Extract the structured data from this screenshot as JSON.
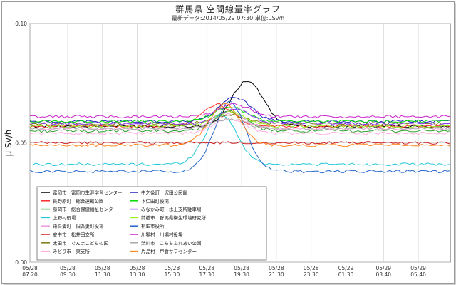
{
  "header": {
    "title": "群馬県 空間線量率グラフ",
    "subtitle": "最新データ:2014/05/29 07:30  単位:μSv/h"
  },
  "chart_data": {
    "type": "line",
    "title": "群馬県 空間線量率グラフ",
    "ylabel": "μ Sv/h",
    "xlabel": "",
    "ylim": [
      0,
      0.1
    ],
    "yticks": [
      "0.00",
      "0.05",
      "0.10"
    ],
    "grid": true,
    "legend_position": "bottom-left",
    "x_tick_labels": [
      [
        "05/28",
        "07:20"
      ],
      [
        "05/28",
        "09:30"
      ],
      [
        "05/28",
        "11:30"
      ],
      [
        "05/28",
        "13:30"
      ],
      [
        "05/28",
        "15:30"
      ],
      [
        "05/28",
        "17:30"
      ],
      [
        "05/28",
        "19:30"
      ],
      [
        "05/28",
        "21:30"
      ],
      [
        "05/28",
        "23:30"
      ],
      [
        "05/29",
        "01:30"
      ],
      [
        "05/29",
        "03:40"
      ],
      [
        "05/29",
        "05:40"
      ]
    ],
    "x_hours": [
      0,
      2.17,
      4.17,
      6.17,
      8.17,
      10.17,
      12.17,
      14.17,
      16.17,
      18.17,
      20.33,
      22.33
    ],
    "x_range_hours": [
      0,
      24.17
    ],
    "series": [
      {
        "name": "富岡市　富岡市生涯学習センター",
        "color": "#000000",
        "base": 0.057,
        "peak": 0.076,
        "peak_at": 12.5
      },
      {
        "name": "長野原町　総合運動公園",
        "color": "#ff2a2a",
        "base": 0.057,
        "peak": 0.066,
        "peak_at": 10.8
      },
      {
        "name": "藤岡市　総合保健福祉センター",
        "color": "#29a029",
        "base": 0.055,
        "peak": 0.063,
        "peak_at": 11.5
      },
      {
        "name": "上野村役場",
        "color": "#25c8d8",
        "base": 0.041,
        "peak": 0.062,
        "peak_at": 11.0
      },
      {
        "name": "東吾妻町　旧吾妻町役場",
        "color": "#ee99dd",
        "base": 0.056,
        "peak": 0.062,
        "peak_at": 11.5
      },
      {
        "name": "安中市　松井田支所",
        "color": "#d02020",
        "base": 0.05,
        "peak": 0.05,
        "peak_at": 11.0
      },
      {
        "name": "太田市　ぐんまこどもの国",
        "color": "#7a7a10",
        "base": 0.058,
        "peak": 0.062,
        "peak_at": 11.5
      },
      {
        "name": "みどり市　東支所",
        "color": "#ffb0e0",
        "base": 0.054,
        "peak": 0.06,
        "peak_at": 11.5
      },
      {
        "name": "中之条町　沢田公民館",
        "color": "#2020c0",
        "base": 0.059,
        "peak": 0.069,
        "peak_at": 11.8
      },
      {
        "name": "下仁田町役場",
        "color": "#00dd00",
        "base": 0.059,
        "peak": 0.065,
        "peak_at": 11.5
      },
      {
        "name": "みなかみ町　水上支所駐車場",
        "color": "#8833ff",
        "base": 0.058,
        "peak": 0.064,
        "peak_at": 11.8
      },
      {
        "name": "前橋市　群馬県衛生環境研究所",
        "color": "#99ee22",
        "base": 0.057,
        "peak": 0.063,
        "peak_at": 11.5
      },
      {
        "name": "桐生市役所",
        "color": "#2266cc",
        "base": 0.038,
        "peak": 0.067,
        "peak_at": 11.5
      },
      {
        "name": "川場村　川場村役場",
        "color": "#cc22cc",
        "base": 0.061,
        "peak": 0.066,
        "peak_at": 11.8
      },
      {
        "name": "渋川市　こもちふれあい公園",
        "color": "#aaaaaa",
        "base": 0.056,
        "peak": 0.06,
        "peak_at": 11.5
      },
      {
        "name": "片品村　戸倉サブセンター",
        "color": "#ff8820",
        "base": 0.049,
        "peak": 0.066,
        "peak_at": 11.2
      }
    ]
  },
  "colors": {
    "grid": "#d0d0d0",
    "axis": "#555555",
    "frame": "#9a9a9a"
  }
}
